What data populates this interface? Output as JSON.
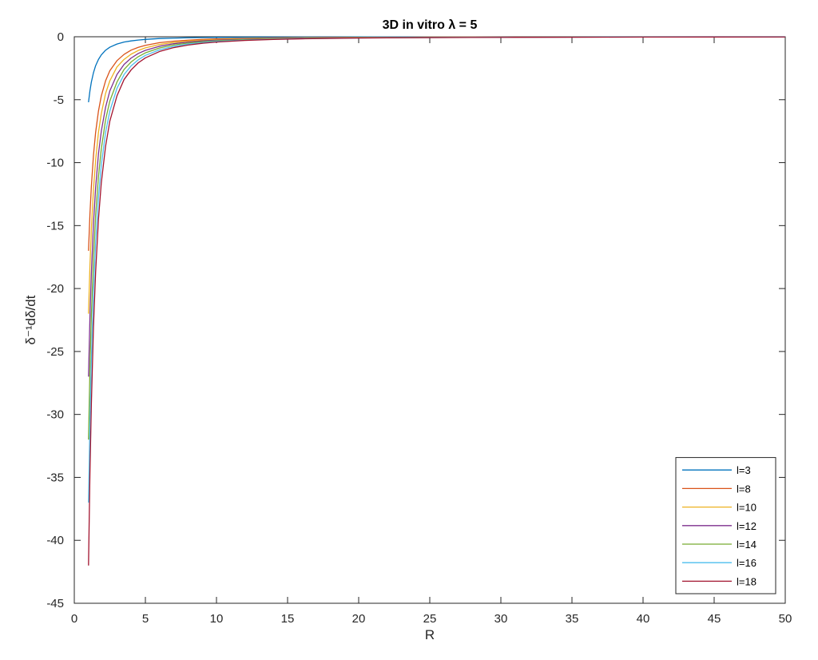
{
  "chart_data": {
    "type": "line",
    "title": "3D  in  vitro  λ  =  5",
    "xlabel": "R",
    "ylabel": "δ⁻¹dδ/dt",
    "xlim": [
      0,
      50
    ],
    "ylim": [
      -45,
      0
    ],
    "xticks": [
      "0",
      "5",
      "10",
      "15",
      "20",
      "25",
      "30",
      "35",
      "40",
      "45",
      "50"
    ],
    "yticks": [
      "0",
      "-5",
      "-10",
      "-15",
      "-20",
      "-25",
      "-30",
      "-35",
      "-40",
      "-45"
    ],
    "grid": false,
    "legend_position": "bottom-right",
    "x": [
      1,
      1.1,
      1.2,
      1.35,
      1.5,
      1.7,
      1.9,
      2.2,
      2.5,
      3,
      3.5,
      4,
      4.5,
      5,
      6,
      7,
      8,
      9,
      10,
      12,
      14,
      16,
      18,
      20,
      22,
      25,
      28,
      31,
      35,
      40,
      45,
      50
    ],
    "series": [
      {
        "name": "l=3",
        "color": "#0072BD",
        "values": [
          -5.2,
          -4.3,
          -3.6,
          -2.85,
          -2.3,
          -1.8,
          -1.44,
          -1.07,
          -0.83,
          -0.58,
          -0.42,
          -0.33,
          -0.26,
          -0.21,
          -0.14,
          -0.11,
          -0.08,
          -0.065,
          -0.052,
          -0.036,
          -0.027,
          -0.02,
          -0.016,
          -0.013,
          -0.011,
          -0.008,
          -0.007,
          -0.005,
          -0.004,
          -0.003,
          -0.0026,
          -0.0021
        ]
      },
      {
        "name": "l=8",
        "color": "#D95319",
        "values": [
          -17,
          -14.1,
          -11.9,
          -9.4,
          -7.6,
          -5.9,
          -4.7,
          -3.5,
          -2.7,
          -1.9,
          -1.4,
          -1.06,
          -0.84,
          -0.68,
          -0.47,
          -0.35,
          -0.27,
          -0.21,
          -0.17,
          -0.12,
          -0.087,
          -0.066,
          -0.052,
          -0.043,
          -0.035,
          -0.027,
          -0.022,
          -0.018,
          -0.014,
          -0.011,
          -0.0084,
          -0.0068
        ]
      },
      {
        "name": "l=10",
        "color": "#EDB120",
        "values": [
          -22,
          -18.2,
          -15.3,
          -12.1,
          -9.8,
          -7.6,
          -6.1,
          -4.5,
          -3.5,
          -2.4,
          -1.8,
          -1.38,
          -1.09,
          -0.88,
          -0.61,
          -0.45,
          -0.34,
          -0.27,
          -0.22,
          -0.15,
          -0.11,
          -0.086,
          -0.068,
          -0.055,
          -0.045,
          -0.035,
          -0.028,
          -0.023,
          -0.018,
          -0.014,
          -0.011,
          -0.0088
        ]
      },
      {
        "name": "l=12",
        "color": "#7E2F8E",
        "values": [
          -27,
          -22.3,
          -18.8,
          -14.8,
          -12,
          -9.3,
          -7.5,
          -5.6,
          -4.3,
          -3,
          -2.2,
          -1.69,
          -1.33,
          -1.08,
          -0.75,
          -0.55,
          -0.42,
          -0.33,
          -0.27,
          -0.19,
          -0.14,
          -0.105,
          -0.083,
          -0.068,
          -0.056,
          -0.043,
          -0.034,
          -0.028,
          -0.022,
          -0.017,
          -0.013,
          -0.011
        ]
      },
      {
        "name": "l=14",
        "color": "#77AC30",
        "values": [
          -32,
          -26.4,
          -22.2,
          -17.6,
          -14.2,
          -11.1,
          -8.9,
          -6.6,
          -5.1,
          -3.6,
          -2.6,
          -2,
          -1.58,
          -1.28,
          -0.89,
          -0.65,
          -0.5,
          -0.4,
          -0.32,
          -0.22,
          -0.163,
          -0.125,
          -0.099,
          -0.08,
          -0.066,
          -0.051,
          -0.041,
          -0.033,
          -0.026,
          -0.02,
          -0.016,
          -0.013
        ]
      },
      {
        "name": "l=16",
        "color": "#4DBEEE",
        "values": [
          -37,
          -30.6,
          -25.7,
          -20.3,
          -16.4,
          -12.8,
          -10.2,
          -7.6,
          -5.9,
          -4.1,
          -3,
          -2.31,
          -1.83,
          -1.48,
          -1.03,
          -0.76,
          -0.58,
          -0.46,
          -0.37,
          -0.26,
          -0.19,
          -0.145,
          -0.114,
          -0.093,
          -0.076,
          -0.059,
          -0.047,
          -0.039,
          -0.03,
          -0.023,
          -0.018,
          -0.015
        ]
      },
      {
        "name": "l=18",
        "color": "#A2142F",
        "values": [
          -42,
          -34.7,
          -29.2,
          -23,
          -18.7,
          -14.5,
          -11.6,
          -8.7,
          -6.7,
          -4.7,
          -3.4,
          -2.63,
          -2.07,
          -1.68,
          -1.17,
          -0.86,
          -0.66,
          -0.52,
          -0.42,
          -0.29,
          -0.214,
          -0.164,
          -0.13,
          -0.105,
          -0.087,
          -0.067,
          -0.054,
          -0.044,
          -0.034,
          -0.026,
          -0.021,
          -0.017
        ]
      }
    ]
  }
}
